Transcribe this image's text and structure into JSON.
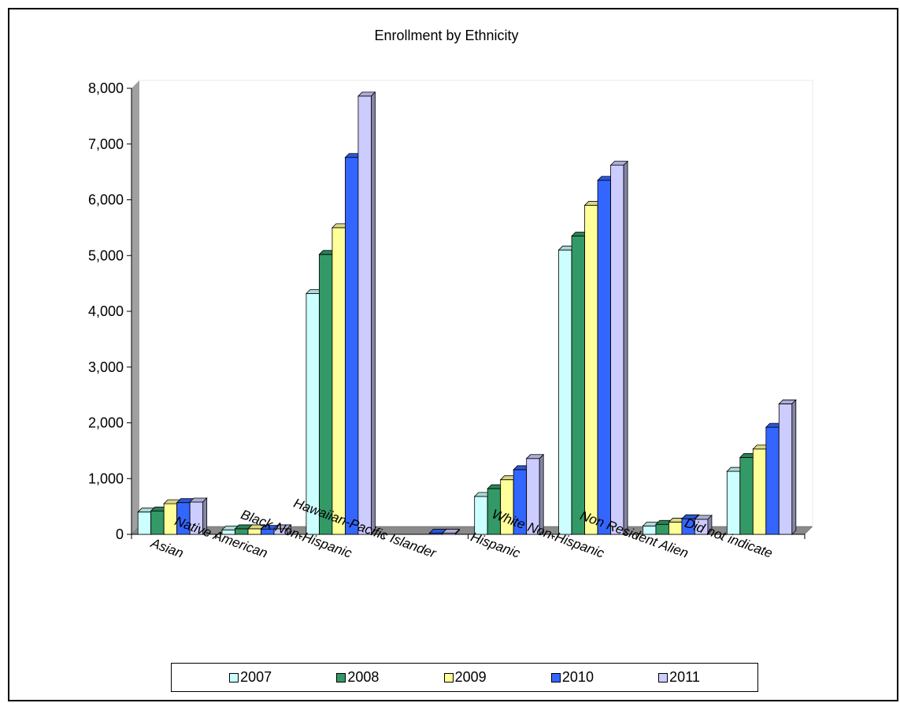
{
  "chart_data": {
    "type": "bar",
    "title": "Enrollment by Ethnicity",
    "xlabel": "",
    "ylabel": "",
    "ylim": [
      0,
      8000
    ],
    "yticks": [
      "0",
      "1,000",
      "2,000",
      "3,000",
      "4,000",
      "5,000",
      "6,000",
      "7,000",
      "8,000"
    ],
    "categories": [
      "Asian",
      "Native American",
      "Black Non-Hispanic",
      "Hawaiian-Pacific Islander",
      "Hispanic",
      "White Non-Hispanic",
      "Non Resident Alien",
      "Did not indicate"
    ],
    "series": [
      {
        "name": "2007",
        "color": "#ccffff",
        "values": [
          400,
          80,
          4320,
          0,
          680,
          5100,
          150,
          1130
        ]
      },
      {
        "name": "2008",
        "color": "#339966",
        "values": [
          420,
          100,
          5020,
          0,
          820,
          5350,
          180,
          1380
        ]
      },
      {
        "name": "2009",
        "color": "#ffff99",
        "values": [
          550,
          100,
          5500,
          0,
          980,
          5900,
          220,
          1530
        ]
      },
      {
        "name": "2010",
        "color": "#3366ff",
        "values": [
          570,
          90,
          6760,
          20,
          1160,
          6350,
          280,
          1920
        ]
      },
      {
        "name": "2011",
        "color": "#ccccff",
        "values": [
          580,
          100,
          7860,
          20,
          1360,
          6620,
          270,
          2340
        ]
      }
    ],
    "grid": false,
    "legend_position": "bottom",
    "three_d": true
  }
}
